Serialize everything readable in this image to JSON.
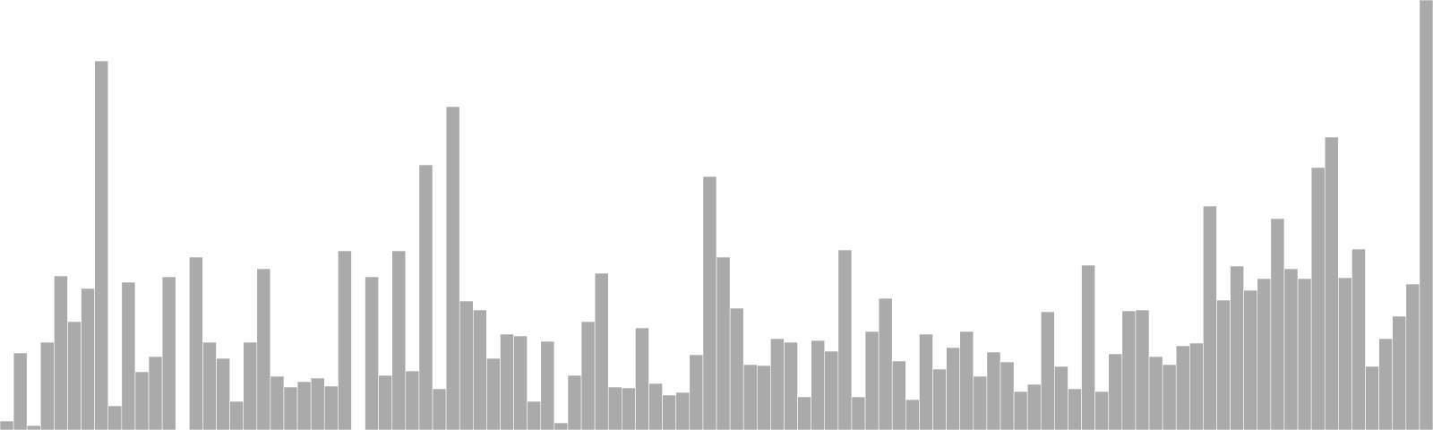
{
  "chart_data": {
    "type": "bar",
    "title": "",
    "xlabel": "",
    "ylabel": "",
    "ylim": [
      0,
      480
    ],
    "grid": false,
    "legend": "none",
    "color": "#aaaaaa",
    "values": [
      10,
      86,
      5,
      98,
      172,
      121,
      158,
      412,
      27,
      165,
      65,
      82,
      171,
      0,
      193,
      98,
      80,
      32,
      98,
      180,
      60,
      48,
      54,
      58,
      49,
      200,
      0,
      171,
      61,
      200,
      66,
      296,
      46,
      361,
      144,
      134,
      80,
      107,
      105,
      32,
      99,
      8,
      61,
      121,
      175,
      48,
      47,
      114,
      52,
      39,
      42,
      84,
      283,
      193,
      136,
      73,
      72,
      102,
      98,
      37,
      100,
      88,
      201,
      37,
      110,
      147,
      77,
      34,
      107,
      68,
      92,
      110,
      60,
      87,
      76,
      43,
      51,
      132,
      71,
      46,
      184,
      43,
      85,
      133,
      134,
      82,
      73,
      94,
      97,
      250,
      145,
      183,
      156,
      169,
      236,
      180,
      169,
      293,
      327,
      170,
      202,
      71,
      102,
      127,
      163,
      480
    ]
  }
}
